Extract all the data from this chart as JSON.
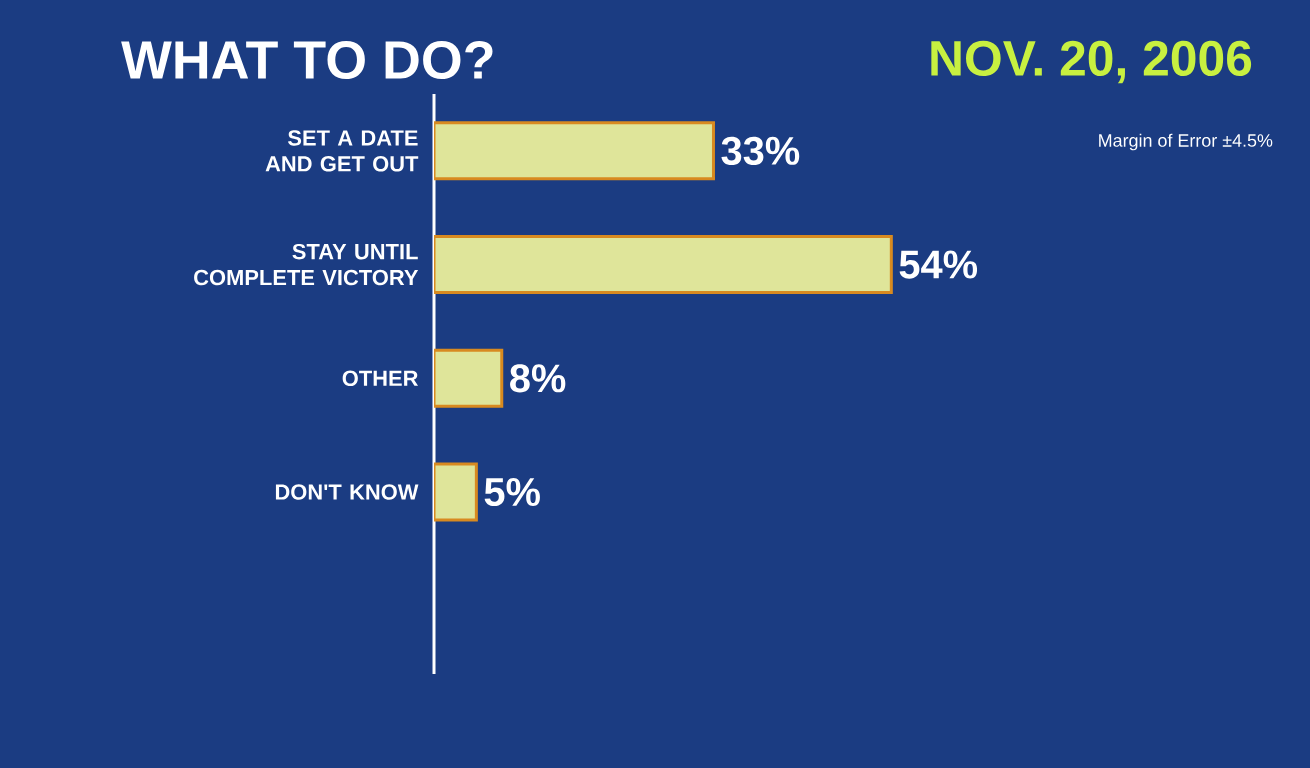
{
  "chart_data": {
    "type": "bar",
    "orientation": "horizontal",
    "title": "WHAT TO DO?",
    "subtitle": "NOV. 20, 2006",
    "categories": [
      "SET A DATE AND GET OUT",
      "STAY UNTIL COMPLETE VICTORY",
      "OTHER",
      "DON'T KNOW"
    ],
    "values": [
      33,
      54,
      8,
      5
    ],
    "value_labels": [
      "33%",
      "54%",
      "8%",
      "5%"
    ],
    "color": "#dfe59a",
    "annotations": [
      "Margin of Error ±4.5%"
    ]
  }
}
